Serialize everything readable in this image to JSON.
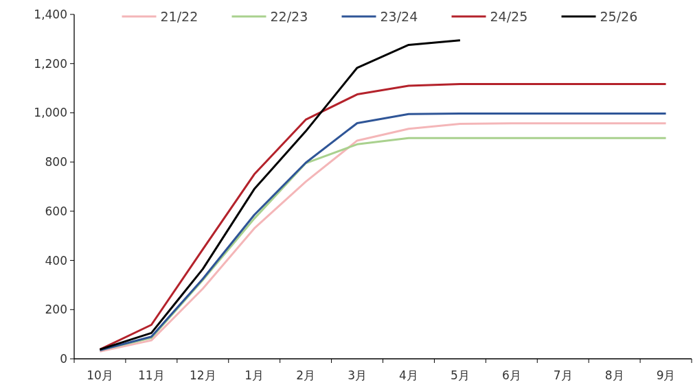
{
  "chart_data": {
    "type": "line",
    "categories": [
      "10月",
      "11月",
      "12月",
      "1月",
      "2月",
      "3月",
      "4月",
      "5月",
      "6月",
      "7月",
      "8月",
      "9月"
    ],
    "ylim": [
      0,
      1400
    ],
    "yticks": [
      0,
      200,
      400,
      600,
      800,
      {
        "value": 1000,
        "label": "1,000"
      },
      {
        "value": 1200,
        "label": "1,200"
      },
      {
        "value": 1400,
        "label": "1,400"
      }
    ],
    "grid": false,
    "legend": "top",
    "marker": "none",
    "line_style": "solid",
    "series": [
      {
        "name": "21/22",
        "color": "#f4b6b8",
        "values": [
          30,
          75,
          285,
          530,
          720,
          887,
          935,
          955,
          957,
          957,
          957,
          957
        ]
      },
      {
        "name": "22/23",
        "color": "#a9d18e",
        "values": [
          35,
          85,
          320,
          570,
          795,
          872,
          897,
          897,
          897,
          897,
          897,
          897
        ]
      },
      {
        "name": "23/24",
        "color": "#2f5597",
        "values": [
          35,
          90,
          325,
          585,
          797,
          958,
          995,
          997,
          997,
          997,
          997,
          997
        ]
      },
      {
        "name": "24/25",
        "color": "#b4222b",
        "values": [
          38,
          138,
          445,
          750,
          972,
          1075,
          1110,
          1117,
          1117,
          1117,
          1117,
          1117
        ]
      },
      {
        "name": "25/26",
        "color": "#000000",
        "values": [
          38,
          105,
          365,
          690,
          925,
          1183,
          1276,
          1295,
          null,
          null,
          null,
          null
        ]
      }
    ]
  }
}
